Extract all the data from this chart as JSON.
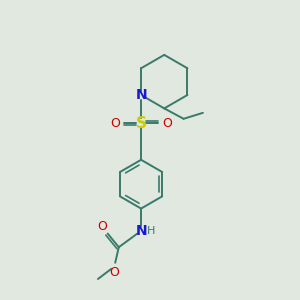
{
  "bg_color": "#e0e8e0",
  "bond_color": "#3a7a6a",
  "bond_width": 1.4,
  "atom_colors": {
    "N": "#1818cc",
    "S": "#cccc00",
    "O": "#cc0000",
    "C": "#3a7a6a",
    "H": "#3a7a6a"
  },
  "font_size": 9,
  "fig_size": [
    3.0,
    3.0
  ],
  "dpi": 100,
  "xlim": [
    0,
    10
  ],
  "ylim": [
    0,
    10
  ]
}
